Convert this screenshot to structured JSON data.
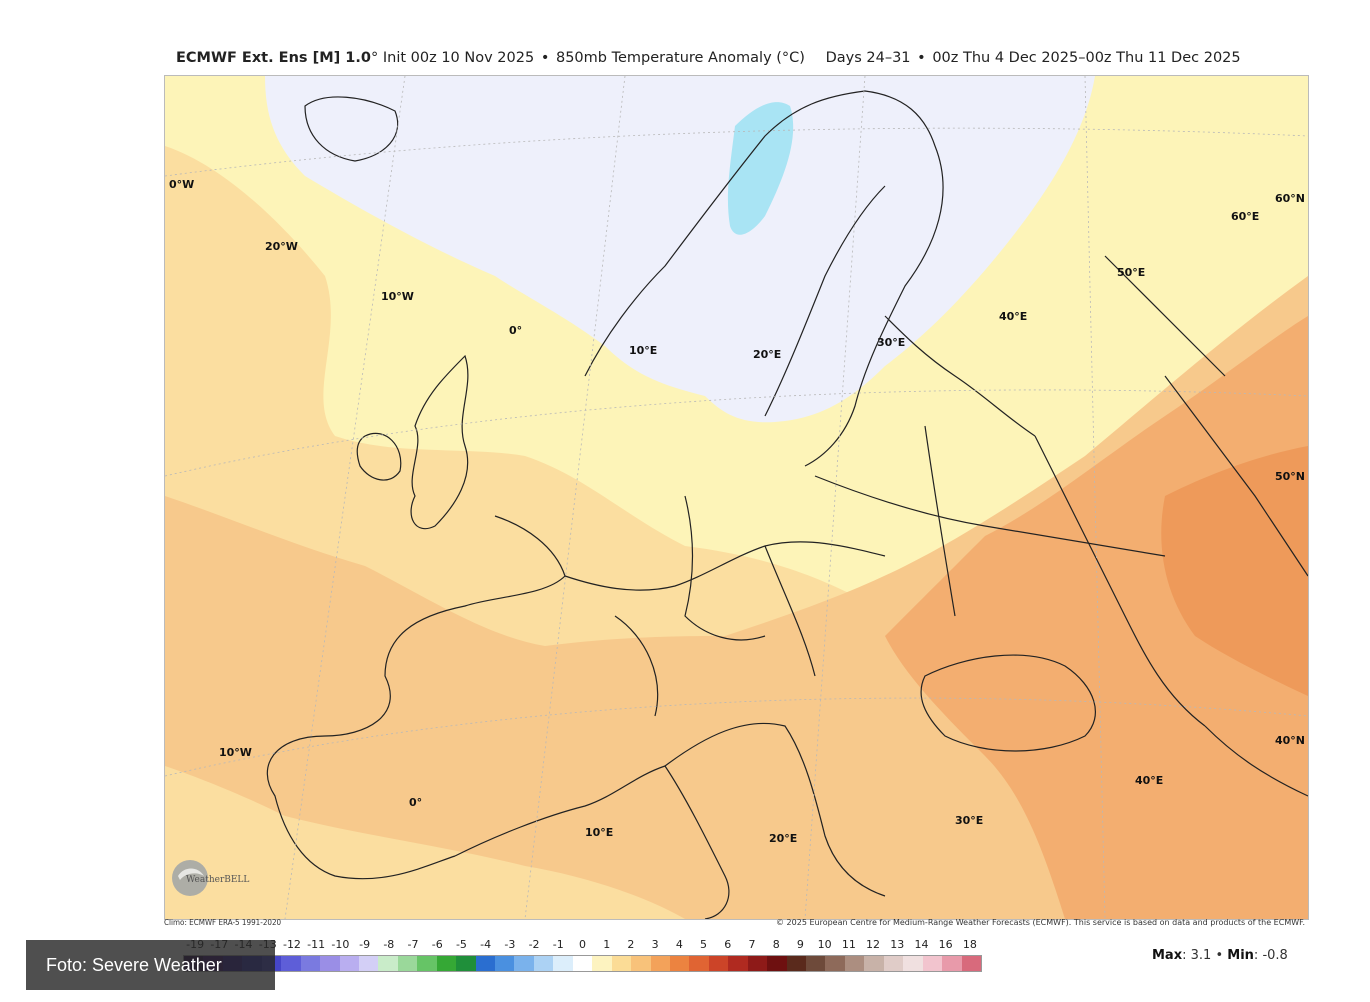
{
  "header": {
    "model": "ECMWF Ext. Ens [M] 1.0",
    "degree": "°",
    "init": "Init 00z 10 Nov 2025",
    "bullet1": "•",
    "variable": "850mb Temperature Anomaly (°C)",
    "days": "Days 24–31",
    "bullet2": "•",
    "valid": "00z Thu 4 Dec 2025–00z Thu 11 Dec 2025"
  },
  "map": {
    "labels": {
      "w0_top": "0°W",
      "w20": "20°W",
      "w10_top": "10°W",
      "zero_top": "0°",
      "e10_top": "10°E",
      "e20_top": "20°E",
      "e30_top": "30°E",
      "e40_top": "40°E",
      "e50": "50°E",
      "e60": "60°E",
      "n60": "60°N",
      "n50": "50°N",
      "n40": "40°N",
      "w10_bot": "10°W",
      "zero_bot": "0°",
      "e10_bot": "10°E",
      "e20_bot": "20°E",
      "e30_bot": "30°E",
      "e40_bot": "40°E"
    },
    "logo_text": "WeatherBELL"
  },
  "footer": {
    "climo": "Climo: ECMWF ERA-5 1991-2020",
    "copyright": "© 2025 European Centre for Medium-Range Weather Forecasts (ECMWF). This service is based on data and products of the ECMWF.",
    "scale_values": [
      "-19",
      "-17",
      "-14",
      "-13",
      "-12",
      "-11",
      "-10",
      "-9",
      "-8",
      "-7",
      "-6",
      "-5",
      "-4",
      "-3",
      "-2",
      "-1",
      "0",
      "1",
      "2",
      "3",
      "4",
      "5",
      "6",
      "7",
      "8",
      "9",
      "10",
      "11",
      "12",
      "13",
      "14",
      "16",
      "18"
    ],
    "scale_colors": [
      "#2a0a4a",
      "#3a0e6e",
      "#2d1a8e",
      "#2f2fb0",
      "#4646c8",
      "#5e5ed8",
      "#7a7ae0",
      "#9a8ee6",
      "#b9aef0",
      "#d3cff6",
      "#c9ecc9",
      "#9ad89a",
      "#66c466",
      "#35a835",
      "#1f8f3a",
      "#2a6ed0",
      "#4a90e0",
      "#7ab2ec",
      "#acd2f4",
      "#dceefb",
      "#ffffff",
      "#fdf3c0",
      "#fbdc96",
      "#f8c27a",
      "#f3a25a",
      "#ec8340",
      "#e06433",
      "#cc4428",
      "#b02a20",
      "#8e1a18",
      "#6e1010",
      "#5a2a1c",
      "#6e4a3a",
      "#8e6a5a",
      "#ac8e80",
      "#c8b2a8",
      "#e0ccc8",
      "#f0e0e0",
      "#f2c4ce",
      "#e89aaa",
      "#d86a7c"
    ],
    "max_label": "Max",
    "max_value": "3.1",
    "min_label": "Min",
    "min_value": "-0.8",
    "sep": "•"
  },
  "credit": {
    "text": "Foto: Severe Weather"
  },
  "colors": {
    "neg_light": "#eef0fb",
    "neg_blue": "#a9e4f4",
    "pos_pale": "#fdf4b8",
    "pos_light": "#fbdea0",
    "pos_mid": "#f7c98c",
    "pos_strong": "#f3ae70",
    "pos_max": "#ee9a5a"
  }
}
